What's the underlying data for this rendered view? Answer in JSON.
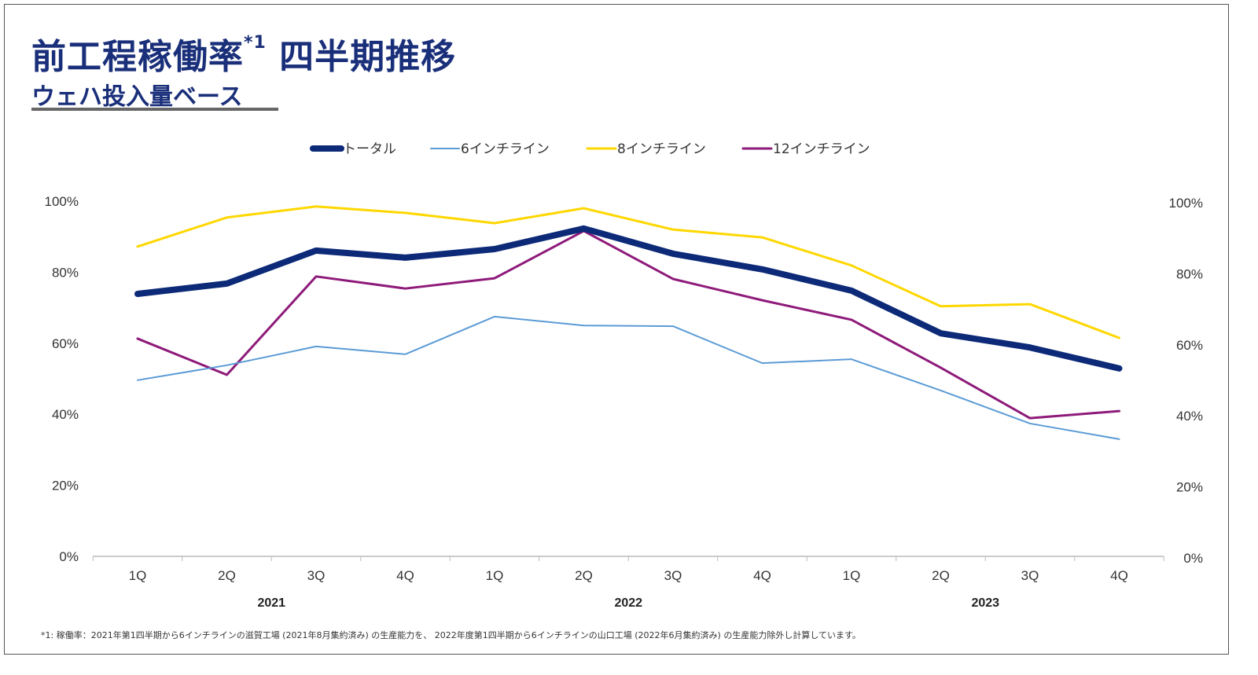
{
  "title": "前工程稼働率",
  "title_mark": "*1",
  "title_suffix": "四半期推移",
  "subtitle": "ウェハ投入量ベース",
  "footnote": "*1: 稼働率：2021年第1四半期から6インチラインの滋賀工場 (2021年8月集約済み) の生産能力を、 2022年度第1四半期から6インチラインの山口工場 (2022年6月集約済み) の生産能力除外し計算しています。",
  "chart_data": {
    "type": "line",
    "categories": [
      "1Q",
      "2Q",
      "3Q",
      "4Q",
      "1Q",
      "2Q",
      "3Q",
      "4Q",
      "1Q",
      "2Q",
      "3Q",
      "4Q"
    ],
    "year_labels": [
      {
        "label": "2021",
        "span": [
          0,
          3
        ]
      },
      {
        "label": "2022",
        "span": [
          4,
          7
        ]
      },
      {
        "label": "2023",
        "span": [
          8,
          11
        ]
      }
    ],
    "ylim": [
      0,
      100
    ],
    "yticks": [
      "0%",
      "20%",
      "40%",
      "60%",
      "80%",
      "100%"
    ],
    "secondary_yticks": [
      "0%",
      "20%",
      "40%",
      "60%",
      "80%",
      "100%"
    ],
    "grid": false,
    "legend_position": "top",
    "series": [
      {
        "name": "トータル",
        "color": "#0d2a78",
        "width": 8,
        "values": [
          73.9,
          76.8,
          86.1,
          84.1,
          86.5,
          92.3,
          85.2,
          80.8,
          74.8,
          62.8,
          58.8,
          52.9
        ]
      },
      {
        "name": "6インチライン",
        "color": "#5b9bd5",
        "width": 2,
        "values": [
          49.6,
          53.8,
          59.1,
          56.9,
          67.5,
          65.0,
          64.8,
          54.4,
          55.5,
          46.7,
          37.4,
          33.0
        ]
      },
      {
        "name": "8インチライン",
        "color": "#ffd700",
        "width": 3,
        "values": [
          87.2,
          95.4,
          98.5,
          96.7,
          93.8,
          98.0,
          92.0,
          89.8,
          81.9,
          70.4,
          71.0,
          61.5
        ]
      },
      {
        "name": "12インチライン",
        "color": "#8e1a7a",
        "width": 3,
        "values": [
          61.3,
          51.1,
          78.8,
          75.4,
          78.3,
          91.6,
          78.1,
          72.1,
          66.6,
          53.1,
          38.9,
          40.9
        ]
      }
    ]
  }
}
